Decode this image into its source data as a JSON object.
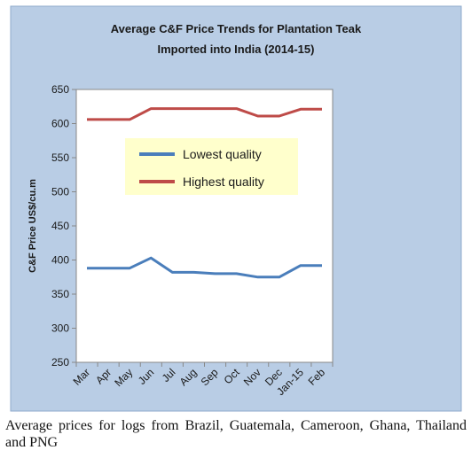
{
  "chart_data": {
    "type": "line",
    "title_line1": "Average C&F Price Trends for Plantation Teak",
    "title_line2": "Imported into India (2014-15)",
    "ylabel": "C&F Price US$/cu.m",
    "xlabel": "",
    "categories": [
      "Mar",
      "Apr",
      "May",
      "Jun",
      "Jul",
      "Aug",
      "Sep",
      "Oct",
      "Nov",
      "Dec",
      "Jan-15",
      "Feb"
    ],
    "ylim": [
      250,
      650
    ],
    "yticks": [
      250,
      300,
      350,
      400,
      450,
      500,
      550,
      600,
      650
    ],
    "grid": false,
    "legend_position": "top-center",
    "series": [
      {
        "name": "Lowest quality",
        "color": "#4a7ebb",
        "values": [
          388,
          388,
          388,
          403,
          382,
          382,
          380,
          380,
          375,
          375,
          392,
          392
        ]
      },
      {
        "name": "Highest quality",
        "color": "#be4b48",
        "values": [
          606,
          606,
          606,
          622,
          622,
          622,
          622,
          622,
          611,
          611,
          621,
          621
        ]
      }
    ],
    "colors": {
      "outer_background": "#b9cde5",
      "plot_background": "#ffffff",
      "legend_background": "#ffffcc"
    }
  },
  "caption": "Average prices for logs from Brazil, Guatemala, Cameroon, Ghana, Thailand and PNG"
}
